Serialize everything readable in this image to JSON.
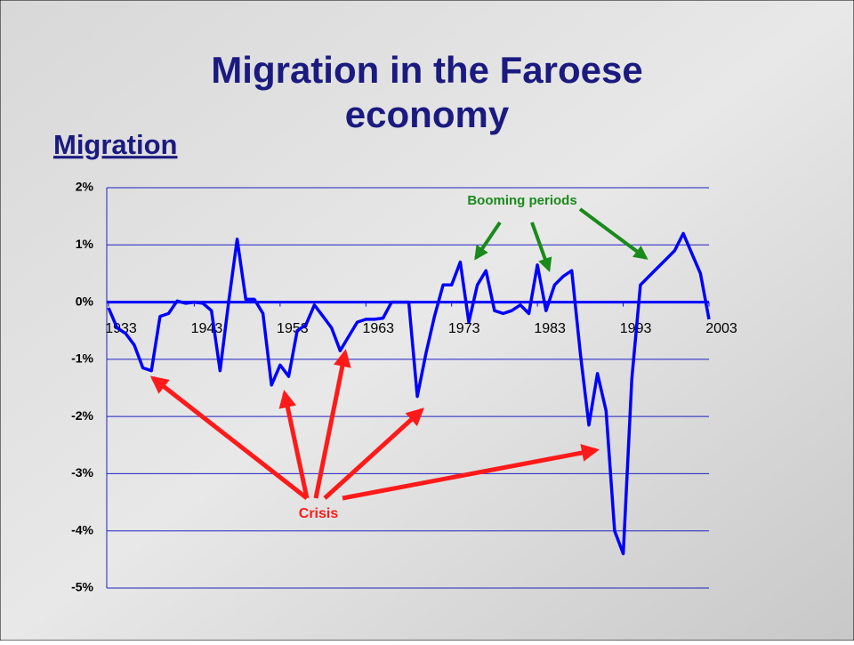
{
  "title": "Migration in the Faroese economy",
  "chart_data": {
    "type": "line",
    "subtitle": "Migration",
    "x": [
      1933,
      1934,
      1935,
      1936,
      1937,
      1938,
      1939,
      1940,
      1941,
      1942,
      1943,
      1944,
      1945,
      1946,
      1947,
      1948,
      1949,
      1950,
      1951,
      1952,
      1953,
      1954,
      1955,
      1956,
      1957,
      1958,
      1959,
      1960,
      1961,
      1962,
      1963,
      1964,
      1965,
      1966,
      1967,
      1968,
      1969,
      1970,
      1971,
      1972,
      1973,
      1974,
      1975,
      1976,
      1977,
      1978,
      1979,
      1980,
      1981,
      1982,
      1983,
      1984,
      1985,
      1986,
      1987,
      1988,
      1989,
      1990,
      1991,
      1992,
      1993,
      1994,
      1995,
      1996,
      1997,
      1998,
      1999,
      2000,
      2001,
      2002,
      2003
    ],
    "values": [
      -0.1,
      -0.45,
      -0.55,
      -0.75,
      -1.15,
      -1.2,
      -0.25,
      -0.2,
      0.02,
      -0.02,
      0.0,
      -0.02,
      -0.15,
      -1.2,
      0.0,
      1.1,
      0.05,
      0.05,
      -0.2,
      -1.45,
      -1.1,
      -1.3,
      -0.5,
      -0.4,
      -0.05,
      -0.25,
      -0.45,
      -0.85,
      -0.6,
      -0.35,
      -0.3,
      -0.3,
      -0.28,
      0.0,
      0.0,
      0.0,
      -1.65,
      -0.9,
      -0.25,
      0.3,
      0.3,
      0.7,
      -0.35,
      0.3,
      0.55,
      -0.15,
      -0.2,
      -0.15,
      -0.05,
      -0.2,
      0.65,
      -0.15,
      0.3,
      0.45,
      0.55,
      -0.9,
      -2.15,
      -1.25,
      -1.9,
      -4.0,
      -4.4,
      -1.35,
      0.3,
      0.45,
      0.6,
      0.75,
      0.9,
      1.2,
      0.85,
      0.5,
      -0.3
    ],
    "color": "#0000ff",
    "xlim": [
      1933,
      2003
    ],
    "xticks": [
      1933,
      1943,
      1953,
      1963,
      1973,
      1983,
      1993,
      2003
    ],
    "ylim": [
      -5,
      2
    ],
    "yticks": [
      {
        "value": 2,
        "label": "2%"
      },
      {
        "value": 1,
        "label": "1%"
      },
      {
        "value": 0,
        "label": "0%"
      },
      {
        "value": -1,
        "label": "-1%"
      },
      {
        "value": -2,
        "label": "-2%"
      },
      {
        "value": -3,
        "label": "-3%"
      },
      {
        "value": -4,
        "label": "-4%"
      },
      {
        "value": -5,
        "label": "-5%"
      }
    ],
    "grid": true,
    "annotations": [
      "Booming periods",
      "Crisis"
    ]
  }
}
